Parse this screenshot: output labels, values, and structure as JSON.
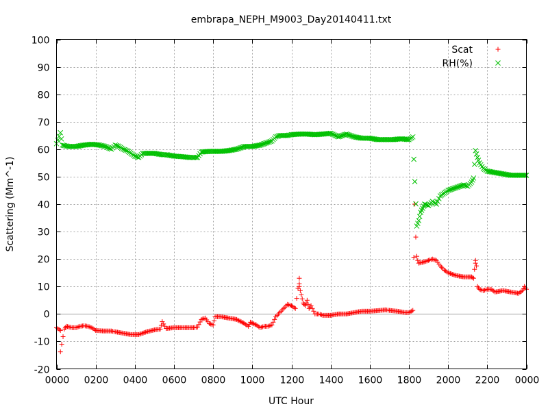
{
  "chart_data": {
    "type": "scatter",
    "title": "embrapa_NEPH_M9003_Day20140411.txt",
    "xlabel": "UTC Hour",
    "ylabel": "Scattering (Mm^-1)",
    "xlim": [
      0,
      2400
    ],
    "ylim": [
      -20,
      100
    ],
    "x_tick_labels": [
      "0000",
      "0200",
      "0400",
      "0600",
      "0800",
      "1000",
      "1200",
      "1400",
      "1600",
      "1800",
      "2000",
      "2200",
      "0000"
    ],
    "y_ticks": [
      -20,
      -10,
      0,
      10,
      20,
      30,
      40,
      50,
      60,
      70,
      80,
      90,
      100
    ],
    "grid": true,
    "zero_line": true,
    "legend_position": "top-right",
    "series": [
      {
        "name": "Scat",
        "marker": "+",
        "color": "#ff0000",
        "points": [
          [
            0,
            -5
          ],
          [
            20,
            -6
          ],
          [
            20,
            -13.8
          ],
          [
            40,
            -5.5
          ],
          [
            50,
            -4.5
          ],
          [
            80,
            -5
          ],
          [
            100,
            -5
          ],
          [
            120,
            -4.5
          ],
          [
            140,
            -4.3
          ],
          [
            160,
            -4.5
          ],
          [
            180,
            -5
          ],
          [
            200,
            -6
          ],
          [
            240,
            -6.2
          ],
          [
            280,
            -6.2
          ],
          [
            300,
            -6.5
          ],
          [
            340,
            -7
          ],
          [
            380,
            -7.5
          ],
          [
            420,
            -7.5
          ],
          [
            460,
            -6.5
          ],
          [
            500,
            -5.8
          ],
          [
            530,
            -5.5
          ],
          [
            540,
            -2.8
          ],
          [
            560,
            -5.3
          ],
          [
            600,
            -5
          ],
          [
            640,
            -5
          ],
          [
            700,
            -5
          ],
          [
            720,
            -4.8
          ],
          [
            740,
            -2
          ],
          [
            760,
            -1.5
          ],
          [
            780,
            -3.5
          ],
          [
            800,
            -4
          ],
          [
            810,
            -1
          ],
          [
            840,
            -1
          ],
          [
            880,
            -1.5
          ],
          [
            920,
            -2
          ],
          [
            960,
            -3.5
          ],
          [
            980,
            -4.5
          ],
          [
            990,
            -3
          ],
          [
            1020,
            -4
          ],
          [
            1040,
            -5
          ],
          [
            1060,
            -4.5
          ],
          [
            1080,
            -4.5
          ],
          [
            1100,
            -4
          ],
          [
            1120,
            -1
          ],
          [
            1140,
            0.5
          ],
          [
            1160,
            2
          ],
          [
            1180,
            3.5
          ],
          [
            1200,
            3
          ],
          [
            1220,
            2
          ],
          [
            1240,
            13
          ],
          [
            1240,
            11
          ],
          [
            1240,
            10
          ],
          [
            1250,
            7
          ],
          [
            1260,
            4
          ],
          [
            1270,
            3
          ],
          [
            1280,
            5
          ],
          [
            1290,
            2
          ],
          [
            1300,
            3
          ],
          [
            1320,
            0
          ],
          [
            1340,
            0
          ],
          [
            1360,
            -0.5
          ],
          [
            1400,
            -0.5
          ],
          [
            1440,
            0
          ],
          [
            1480,
            0
          ],
          [
            1520,
            0.5
          ],
          [
            1560,
            1
          ],
          [
            1600,
            1
          ],
          [
            1640,
            1.2
          ],
          [
            1680,
            1.5
          ],
          [
            1700,
            1.3
          ],
          [
            1740,
            1
          ],
          [
            1780,
            0.5
          ],
          [
            1800,
            0.5
          ],
          [
            1820,
            1.3
          ],
          [
            1830,
            40
          ],
          [
            1835,
            28
          ],
          [
            1840,
            21
          ],
          [
            1845,
            19.5
          ],
          [
            1850,
            18.5
          ],
          [
            1880,
            19
          ],
          [
            1900,
            19.5
          ],
          [
            1920,
            20
          ],
          [
            1940,
            19.5
          ],
          [
            1960,
            17.5
          ],
          [
            1980,
            16
          ],
          [
            2000,
            15
          ],
          [
            2040,
            14
          ],
          [
            2080,
            13.5
          ],
          [
            2120,
            13.5
          ],
          [
            2130,
            13
          ],
          [
            2140,
            19.5
          ],
          [
            2140,
            18.5
          ],
          [
            2145,
            17.5
          ],
          [
            2150,
            10
          ],
          [
            2160,
            9
          ],
          [
            2180,
            8.5
          ],
          [
            2200,
            9
          ],
          [
            2220,
            9
          ],
          [
            2240,
            8
          ],
          [
            2280,
            8.5
          ],
          [
            2320,
            8
          ],
          [
            2360,
            7.5
          ],
          [
            2380,
            8.5
          ],
          [
            2390,
            10
          ],
          [
            2400,
            9
          ]
        ]
      },
      {
        "name": "RH(%)",
        "marker": "x",
        "color": "#00c000",
        "points": [
          [
            0,
            62
          ],
          [
            20,
            66
          ],
          [
            30,
            61.5
          ],
          [
            60,
            61
          ],
          [
            100,
            61
          ],
          [
            140,
            61.5
          ],
          [
            180,
            61.8
          ],
          [
            220,
            61.5
          ],
          [
            250,
            61
          ],
          [
            280,
            60
          ],
          [
            300,
            61.5
          ],
          [
            320,
            61
          ],
          [
            340,
            60
          ],
          [
            360,
            59.5
          ],
          [
            380,
            58.5
          ],
          [
            400,
            57.5
          ],
          [
            420,
            57
          ],
          [
            440,
            58.5
          ],
          [
            460,
            58.5
          ],
          [
            500,
            58.5
          ],
          [
            540,
            58
          ],
          [
            560,
            58
          ],
          [
            600,
            57.5
          ],
          [
            640,
            57.3
          ],
          [
            680,
            57
          ],
          [
            700,
            57
          ],
          [
            720,
            57
          ],
          [
            740,
            59
          ],
          [
            780,
            59.2
          ],
          [
            800,
            59.2
          ],
          [
            840,
            59.2
          ],
          [
            880,
            59.5
          ],
          [
            920,
            60
          ],
          [
            960,
            61
          ],
          [
            1000,
            61
          ],
          [
            1040,
            61.5
          ],
          [
            1080,
            62.5
          ],
          [
            1100,
            63
          ],
          [
            1120,
            64.5
          ],
          [
            1140,
            65
          ],
          [
            1180,
            65
          ],
          [
            1200,
            65.3
          ],
          [
            1240,
            65.5
          ],
          [
            1280,
            65.5
          ],
          [
            1320,
            65.3
          ],
          [
            1360,
            65.5
          ],
          [
            1400,
            65.8
          ],
          [
            1440,
            64.5
          ],
          [
            1480,
            65.5
          ],
          [
            1520,
            64.5
          ],
          [
            1560,
            64
          ],
          [
            1600,
            64
          ],
          [
            1640,
            63.5
          ],
          [
            1680,
            63.5
          ],
          [
            1720,
            63.5
          ],
          [
            1760,
            63.8
          ],
          [
            1800,
            63.5
          ],
          [
            1820,
            64.5
          ],
          [
            1830,
            48.2
          ],
          [
            1840,
            32
          ],
          [
            1850,
            34
          ],
          [
            1860,
            37
          ],
          [
            1870,
            38.5
          ],
          [
            1880,
            40
          ],
          [
            1900,
            39.5
          ],
          [
            1920,
            41
          ],
          [
            1940,
            40
          ],
          [
            1960,
            43
          ],
          [
            1980,
            44
          ],
          [
            2000,
            45
          ],
          [
            2040,
            46
          ],
          [
            2080,
            47
          ],
          [
            2100,
            46.5
          ],
          [
            2120,
            48
          ],
          [
            2130,
            49.5
          ],
          [
            2140,
            59.5
          ],
          [
            2150,
            57
          ],
          [
            2160,
            55
          ],
          [
            2180,
            53
          ],
          [
            2200,
            52
          ],
          [
            2240,
            51.5
          ],
          [
            2280,
            51
          ],
          [
            2320,
            50.5
          ],
          [
            2360,
            50.5
          ],
          [
            2400,
            50.5
          ]
        ]
      }
    ]
  }
}
